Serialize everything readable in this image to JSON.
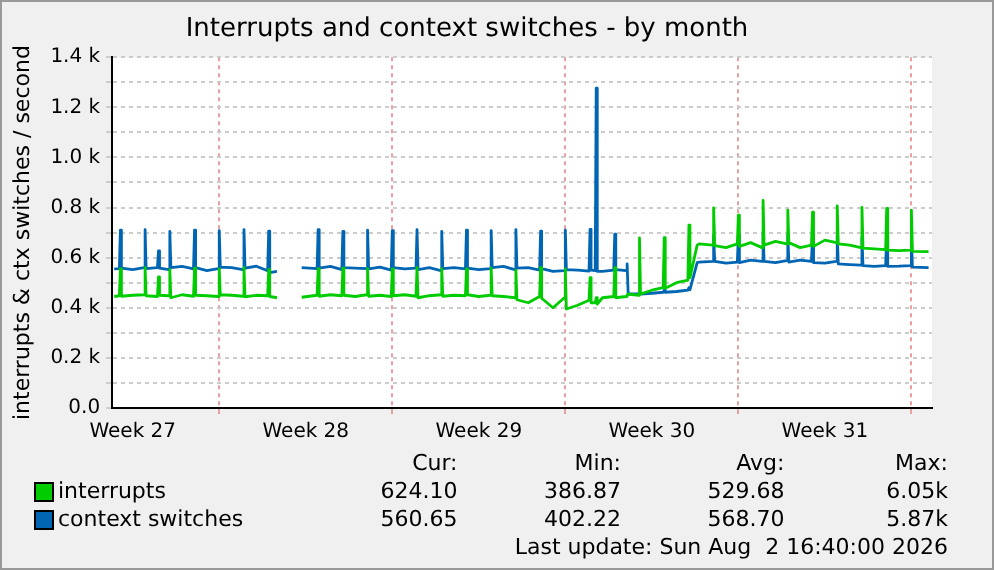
{
  "chart_data": {
    "type": "line",
    "title": "Interrupts and context switches - by month",
    "ylabel": "interrupts & ctx switches / second",
    "x": [
      "2026-06-30T18:00",
      "2026-06-30T23:00",
      "2026-07-01T00:00",
      "2026-07-01T01:00",
      "2026-07-01T12:00",
      "2026-07-01T23:00",
      "2026-07-02T00:00",
      "2026-07-02T01:00",
      "2026-07-02T12:00",
      "2026-07-02T13:00",
      "2026-07-02T14:00",
      "2026-07-02T23:00",
      "2026-07-03T00:00",
      "2026-07-03T01:00",
      "2026-07-03T12:00",
      "2026-07-03T23:00",
      "2026-07-04T00:00",
      "2026-07-04T01:00",
      "2026-07-04T12:00",
      "2026-07-04T23:00",
      "2026-07-05T00:00",
      "2026-07-05T01:00",
      "2026-07-05T12:00",
      "2026-07-05T23:00",
      "2026-07-06T00:00",
      "2026-07-06T01:00",
      "2026-07-06T12:00",
      "2026-07-06T23:00",
      "2026-07-07T00:00",
      "2026-07-07T01:00",
      "2026-07-07T08:00",
      "2026-07-07T20:00",
      "2026-07-08T08:00",
      "2026-07-08T23:00",
      "2026-07-09T00:00",
      "2026-07-09T01:00",
      "2026-07-09T12:00",
      "2026-07-09T23:00",
      "2026-07-10T00:00",
      "2026-07-10T01:00",
      "2026-07-10T12:00",
      "2026-07-10T23:00",
      "2026-07-11T00:00",
      "2026-07-11T01:00",
      "2026-07-11T12:00",
      "2026-07-11T23:00",
      "2026-07-12T00:00",
      "2026-07-12T01:00",
      "2026-07-12T12:00",
      "2026-07-12T23:00",
      "2026-07-13T00:00",
      "2026-07-13T01:00",
      "2026-07-13T12:00",
      "2026-07-13T23:00",
      "2026-07-14T00:00",
      "2026-07-14T01:00",
      "2026-07-14T12:00",
      "2026-07-14T23:00",
      "2026-07-15T00:00",
      "2026-07-15T01:00",
      "2026-07-15T12:00",
      "2026-07-15T23:00",
      "2026-07-16T00:00",
      "2026-07-16T01:00",
      "2026-07-16T12:00",
      "2026-07-16T23:00",
      "2026-07-17T00:00",
      "2026-07-17T01:00",
      "2026-07-17T12:00",
      "2026-07-17T23:00",
      "2026-07-18T00:00",
      "2026-07-18T01:00",
      "2026-07-18T12:00",
      "2026-07-18T23:00",
      "2026-07-19T00:00",
      "2026-07-19T01:00",
      "2026-07-19T12:00",
      "2026-07-19T23:00",
      "2026-07-20T00:00",
      "2026-07-20T01:00",
      "2026-07-20T05:00",
      "2026-07-20T06:00",
      "2026-07-20T07:00",
      "2026-07-20T12:00",
      "2026-07-20T23:00",
      "2026-07-21T00:00",
      "2026-07-21T01:00",
      "2026-07-21T11:00",
      "2026-07-21T12:00",
      "2026-07-21T13:00",
      "2026-07-21T23:00",
      "2026-07-22T00:00",
      "2026-07-22T01:00",
      "2026-07-22T12:00",
      "2026-07-22T23:00",
      "2026-07-23T00:00",
      "2026-07-23T01:00",
      "2026-07-23T12:00",
      "2026-07-23T23:00",
      "2026-07-24T00:00",
      "2026-07-24T01:00",
      "2026-07-24T08:00",
      "2026-07-24T10:00",
      "2026-07-24T23:00",
      "2026-07-25T00:00",
      "2026-07-25T01:00",
      "2026-07-25T12:00",
      "2026-07-25T23:00",
      "2026-07-26T00:00",
      "2026-07-26T01:00",
      "2026-07-26T12:00",
      "2026-07-26T23:00",
      "2026-07-27T00:00",
      "2026-07-27T01:00",
      "2026-07-27T12:00",
      "2026-07-27T23:00",
      "2026-07-28T00:00",
      "2026-07-28T01:00",
      "2026-07-28T12:00",
      "2026-07-28T23:00",
      "2026-07-29T00:00",
      "2026-07-29T01:00",
      "2026-07-29T12:00",
      "2026-07-29T23:00",
      "2026-07-30T00:00",
      "2026-07-30T01:00",
      "2026-07-30T12:00",
      "2026-07-30T23:00",
      "2026-07-31T00:00",
      "2026-07-31T01:00",
      "2026-07-31T12:00",
      "2026-07-31T23:00",
      "2026-08-01T00:00",
      "2026-08-01T01:00",
      "2026-08-01T12:00",
      "2026-08-01T23:00",
      "2026-08-02T00:00",
      "2026-08-02T01:00",
      "2026-08-02T16:40"
    ],
    "series": [
      {
        "name": "interrupts",
        "color": "#00cc00",
        "values": [
          445,
          448,
          555,
          446,
          450,
          452,
          560,
          448,
          445,
          523,
          450,
          448,
          552,
          440,
          452,
          446,
          558,
          450,
          448,
          445,
          555,
          452,
          450,
          446,
          560,
          444,
          450,
          448,
          552,
          445,
          440,
          null,
          442,
          450,
          555,
          446,
          452,
          448,
          558,
          450,
          445,
          452,
          556,
          446,
          450,
          445,
          555,
          448,
          452,
          446,
          560,
          440,
          448,
          452,
          556,
          446,
          450,
          448,
          555,
          452,
          445,
          450,
          558,
          448,
          445,
          440,
          550,
          432,
          420,
          445,
          560,
          438,
          400,
          440,
          555,
          395,
          410,
          430,
          520,
          420,
          420,
          440,
          415,
          440,
          445,
          560,
          440,
          445,
          450,
          455,
          450,
          679,
          455,
          470,
          480,
          680,
          478,
          500,
          510,
          730,
          520,
          650,
          655,
          650,
          799,
          648,
          640,
          655,
          770,
          645,
          660,
          640,
          829,
          650,
          665,
          655,
          790,
          660,
          640,
          650,
          782,
          645,
          670,
          660,
          807,
          655,
          650,
          640,
          801,
          638,
          635,
          632,
          797,
          630,
          628,
          630,
          790,
          625,
          624
        ]
      },
      {
        "name": "context switches",
        "color": "#0066b3",
        "values": [
          555,
          556,
          710,
          558,
          552,
          560,
          712,
          556,
          560,
          627,
          558,
          552,
          705,
          560,
          565,
          555,
          710,
          560,
          548,
          556,
          708,
          562,
          560,
          552,
          712,
          558,
          566,
          548,
          706,
          540,
          545,
          null,
          560,
          556,
          712,
          558,
          565,
          552,
          705,
          560,
          558,
          556,
          710,
          555,
          562,
          550,
          708,
          560,
          555,
          558,
          712,
          552,
          560,
          548,
          705,
          556,
          560,
          555,
          710,
          558,
          552,
          556,
          708,
          560,
          565,
          552,
          712,
          558,
          560,
          550,
          706,
          556,
          545,
          548,
          710,
          552,
          550,
          546,
          713,
          550,
          548,
          1276,
          545,
          545,
          550,
          694,
          552,
          548,
          575,
          455,
          456,
          460,
          455,
          458,
          462,
          470,
          462,
          465,
          470,
          480,
          472,
          580,
          582,
          585,
          690,
          585,
          578,
          582,
          690,
          580,
          590,
          585,
          700,
          585,
          580,
          588,
          690,
          582,
          590,
          585,
          695,
          580,
          578,
          585,
          690,
          575,
          572,
          570,
          680,
          568,
          565,
          568,
          685,
          565,
          566,
          568,
          680,
          562,
          560
        ]
      }
    ],
    "xlim": [
      "2026-06-30T16:00",
      "2026-08-02T20:00"
    ],
    "xticks": [
      {
        "value": "2026-07-01T12:00",
        "label": "Week 27"
      },
      {
        "value": "2026-07-05",
        "label": null
      },
      {
        "value": "2026-07-08T12:00",
        "label": "Week 28"
      },
      {
        "value": "2026-07-12",
        "label": null
      },
      {
        "value": "2026-07-15T12:00",
        "label": "Week 29"
      },
      {
        "value": "2026-07-19",
        "label": null
      },
      {
        "value": "2026-07-22T12:00",
        "label": "Week 30"
      },
      {
        "value": "2026-07-26",
        "label": null
      },
      {
        "value": "2026-07-29T12:00",
        "label": "Week 31"
      },
      {
        "value": "2026-08-02",
        "label": null
      }
    ],
    "ylim": [
      0,
      1400
    ],
    "yticks": [
      {
        "value": 0,
        "label": "0.0"
      },
      {
        "value": 100,
        "label": null
      },
      {
        "value": 200,
        "label": "0.2 k"
      },
      {
        "value": 300,
        "label": null
      },
      {
        "value": 400,
        "label": "0.4 k"
      },
      {
        "value": 500,
        "label": null
      },
      {
        "value": 600,
        "label": "0.6 k"
      },
      {
        "value": 700,
        "label": null
      },
      {
        "value": 800,
        "label": "0.8 k"
      },
      {
        "value": 900,
        "label": null
      },
      {
        "value": 1000,
        "label": "1.0 k"
      },
      {
        "value": 1100,
        "label": null
      },
      {
        "value": 1200,
        "label": "1.2 k"
      },
      {
        "value": 1300,
        "label": null
      },
      {
        "value": 1400,
        "label": "1.4 k"
      }
    ],
    "grid": true,
    "legend": "bottom",
    "marker": "none",
    "line_style": "solid",
    "annotations": [
      "Cur:",
      "Min:",
      "Avg:",
      "Max:",
      "624.10",
      "386.87",
      "529.68",
      "6.05k",
      "560.65",
      "402.22",
      "568.70",
      "5.87k",
      "Last update: Sun Aug  2 16:40:00 2026"
    ]
  }
}
